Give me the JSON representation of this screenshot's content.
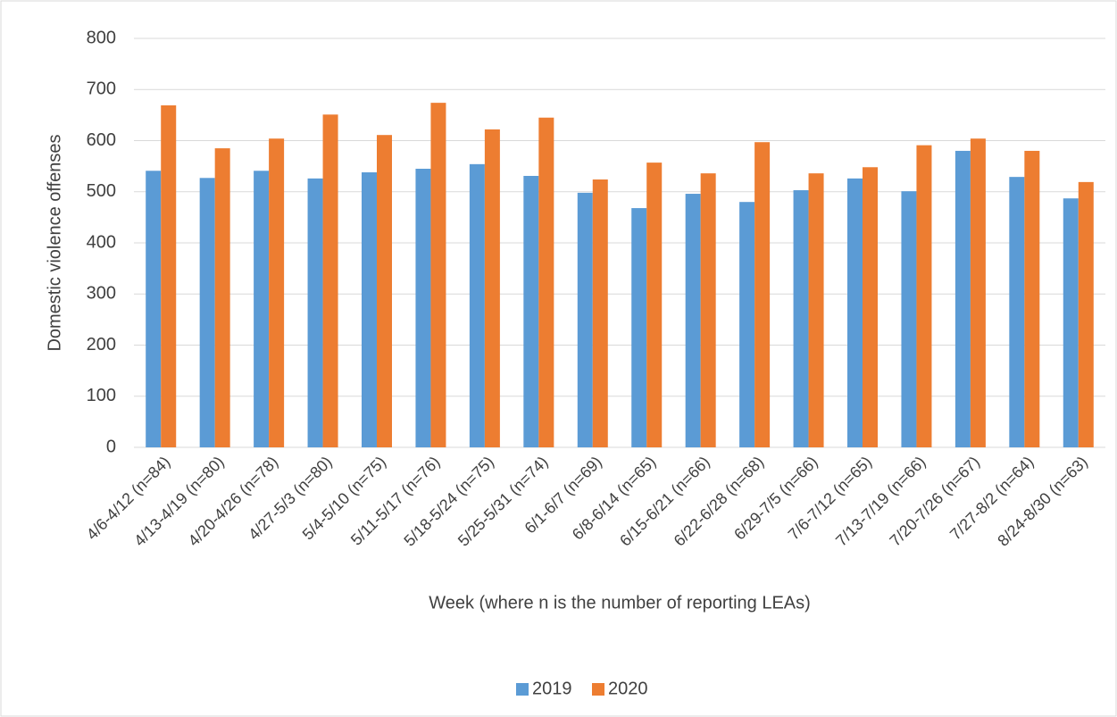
{
  "chart_data": {
    "type": "bar",
    "x_label": "Week (where n is the number of reporting LEAs)",
    "y_label": "Domestic violence offenses",
    "categories": [
      "4/6-4/12 (n=84)",
      "4/13-4/19 (n=80)",
      "4/20-4/26 (n=78)",
      "4/27-5/3 (n=80)",
      "5/4-5/10 (n=75)",
      "5/11-5/17 (n=76)",
      "5/18-5/24 (n=75)",
      "5/25-5/31 (n=74)",
      "6/1-6/7 (n=69)",
      "6/8-6/14 (n=65)",
      "6/15-6/21 (n=66)",
      "6/22-6/28 (n=68)",
      "6/29-7/5 (n=66)",
      "7/6-7/12 (n=65)",
      "7/13-7/19 (n=66)",
      "7/20-7/26 (n=67)",
      "7/27-8/2 (n=64)",
      "8/24-8/30 (n=63)"
    ],
    "series": [
      {
        "name": "2019",
        "color": "#5b9bd5",
        "values": [
          541,
          527,
          541,
          526,
          538,
          545,
          554,
          531,
          498,
          468,
          496,
          480,
          503,
          526,
          501,
          580,
          529,
          487
        ]
      },
      {
        "name": "2020",
        "color": "#ed7d31",
        "values": [
          669,
          585,
          604,
          651,
          611,
          674,
          622,
          645,
          524,
          557,
          536,
          597,
          536,
          548,
          591,
          604,
          580,
          519
        ]
      }
    ],
    "ylim": [
      0,
      800
    ],
    "yticks": [
      0,
      100,
      200,
      300,
      400,
      500,
      600,
      700,
      800
    ],
    "grid": true,
    "legend": "bottom"
  }
}
